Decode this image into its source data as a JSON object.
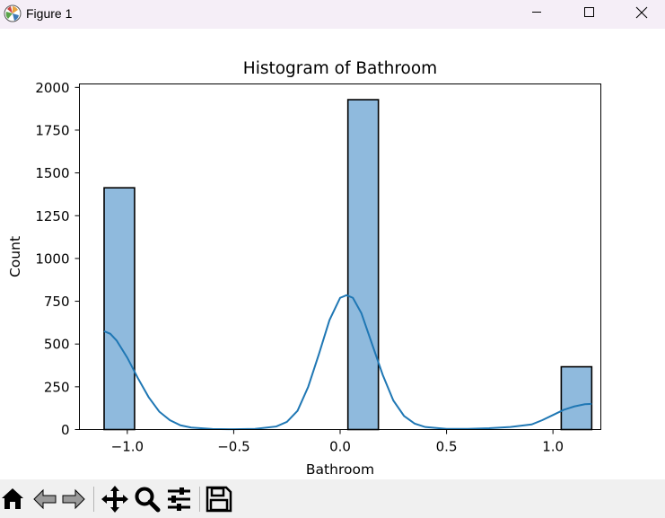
{
  "window": {
    "title": "Figure 1",
    "icons": {
      "app": "matplotlib-icon",
      "minimize": "minimize-icon",
      "maximize": "maximize-icon",
      "close": "close-icon"
    }
  },
  "toolbar": {
    "tools": [
      {
        "name": "home",
        "icon": "home-icon"
      },
      {
        "name": "back",
        "icon": "back-arrow-icon"
      },
      {
        "name": "forward",
        "icon": "forward-arrow-icon"
      },
      {
        "name": "pan",
        "icon": "move-icon"
      },
      {
        "name": "zoom",
        "icon": "zoom-icon"
      },
      {
        "name": "configure-subplots",
        "icon": "sliders-icon"
      },
      {
        "name": "save",
        "icon": "save-icon"
      }
    ]
  },
  "chart_data": {
    "type": "bar",
    "title": "Histogram of Bathroom",
    "xlabel": "Bathroom",
    "ylabel": "Count",
    "xlim": [
      -1.225,
      1.225
    ],
    "ylim": [
      0,
      2020
    ],
    "xticks": [
      -1.0,
      -0.5,
      0.0,
      0.5,
      1.0
    ],
    "xtick_labels": [
      "−1.0",
      "−0.5",
      "0.0",
      "0.5",
      "1.0"
    ],
    "yticks": [
      0,
      250,
      500,
      750,
      1000,
      1250,
      1500,
      1750,
      2000
    ],
    "ytick_labels": [
      "0",
      "250",
      "500",
      "750",
      "1000",
      "1250",
      "1500",
      "1750",
      "2000"
    ],
    "bin_edges": [
      -1.109,
      -0.9658,
      -0.8226,
      -0.6794,
      -0.5362,
      -0.393,
      -0.2498,
      -0.1066,
      0.0366,
      0.1798,
      0.323,
      0.4662,
      0.6094,
      0.7526,
      0.8958,
      1.039,
      1.1822
    ],
    "counts": [
      1413,
      0,
      0,
      0,
      0,
      0,
      0,
      0,
      1928,
      0,
      0,
      0,
      0,
      0,
      0,
      367
    ],
    "bar_color": "#8fbadd",
    "edge_color": "#000000",
    "kde": {
      "color": "#1f77b4",
      "x": [
        -1.109,
        -1.08,
        -1.05,
        -1.0,
        -0.95,
        -0.9,
        -0.85,
        -0.8,
        -0.75,
        -0.7,
        -0.6,
        -0.5,
        -0.4,
        -0.3,
        -0.25,
        -0.2,
        -0.15,
        -0.1,
        -0.05,
        0.0,
        0.03,
        0.06,
        0.1,
        0.15,
        0.2,
        0.25,
        0.3,
        0.35,
        0.4,
        0.5,
        0.6,
        0.7,
        0.8,
        0.9,
        0.95,
        1.0,
        1.05,
        1.1,
        1.15,
        1.182
      ],
      "y": [
        575,
        560,
        520,
        420,
        300,
        190,
        105,
        55,
        25,
        12,
        3,
        2,
        4,
        18,
        45,
        110,
        250,
        440,
        640,
        770,
        785,
        770,
        680,
        500,
        320,
        170,
        80,
        35,
        15,
        4,
        4,
        8,
        15,
        30,
        55,
        85,
        115,
        135,
        148,
        150
      ]
    }
  }
}
